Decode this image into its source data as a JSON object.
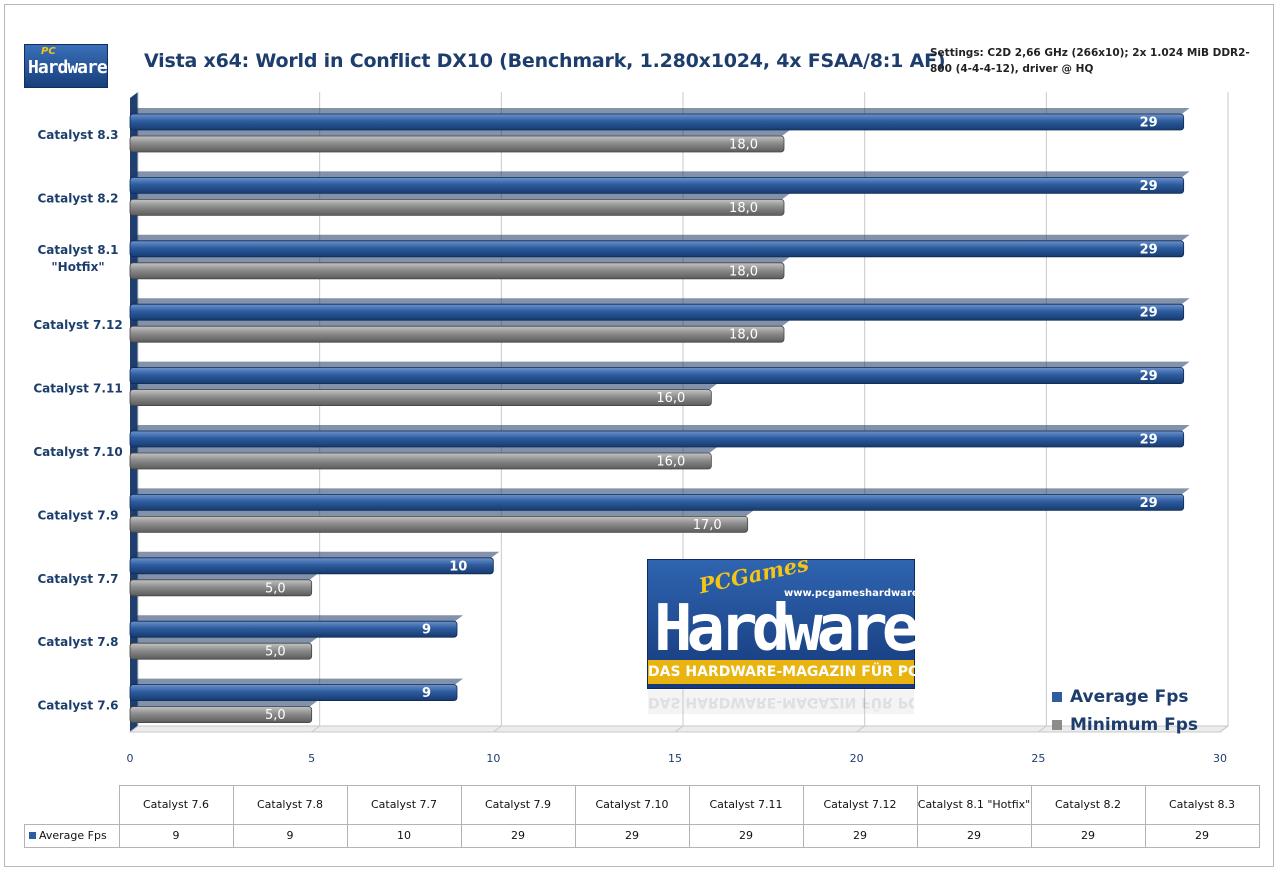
{
  "title": "Vista x64: World in Conflict DX10 (Benchmark, 1.280x1024, 4x FSAA/8:1 AF)",
  "settings": "Settings: C2D 2,66 GHz (266x10); 2x 1.024 MiB DDR2-800 (4-4-4-12), driver @ HQ",
  "logo": {
    "small_top": "PC",
    "small_main": "Hardware"
  },
  "watermark": {
    "brand_top": "PCGames",
    "url": "www.pcgameshardware.de",
    "main": "Hardware",
    "subline": "DAS HARDWARE-MAGAZIN FÜR PC-SPIELER"
  },
  "colors": {
    "average": "#2d5c9f",
    "minimum": "#8c8c8c"
  },
  "chart_data": {
    "type": "bar",
    "orientation": "horizontal",
    "categories": [
      "Catalyst 8.3",
      "Catalyst 8.2",
      "Catalyst 8.1 \"Hotfix\"",
      "Catalyst 7.12",
      "Catalyst 7.11",
      "Catalyst 7.10",
      "Catalyst 7.9",
      "Catalyst 7.7",
      "Catalyst 7.8",
      "Catalyst 7.6"
    ],
    "series": [
      {
        "name": "Average Fps",
        "values": [
          29,
          29,
          29,
          29,
          29,
          29,
          29,
          10,
          9,
          9
        ],
        "labels": [
          "29",
          "29",
          "29",
          "29",
          "29",
          "29",
          "29",
          "10",
          "9",
          "9"
        ]
      },
      {
        "name": "Minimum  Fps",
        "values": [
          18,
          18,
          18,
          18,
          16,
          16,
          17,
          5,
          5,
          5
        ],
        "labels": [
          "18,0",
          "18,0",
          "18,0",
          "18,0",
          "16,0",
          "16,0",
          "17,0",
          "5,0",
          "5,0",
          "5,0"
        ]
      }
    ],
    "xlim": [
      0,
      30
    ],
    "xticks": [
      "0",
      "5",
      "10",
      "15",
      "20",
      "25",
      "30"
    ],
    "grid": true,
    "legend_position": "bottom-right"
  },
  "table": {
    "columns": [
      "Catalyst 7.6",
      "Catalyst 7.8",
      "Catalyst 7.7",
      "Catalyst 7.9",
      "Catalyst 7.10",
      "Catalyst 7.11",
      "Catalyst 7.12",
      "Catalyst 8.1 \"Hotfix\"",
      "Catalyst 8.2",
      "Catalyst 8.3"
    ],
    "row_label": "Average Fps",
    "values": [
      "9",
      "9",
      "10",
      "29",
      "29",
      "29",
      "29",
      "29",
      "29",
      "29"
    ]
  }
}
